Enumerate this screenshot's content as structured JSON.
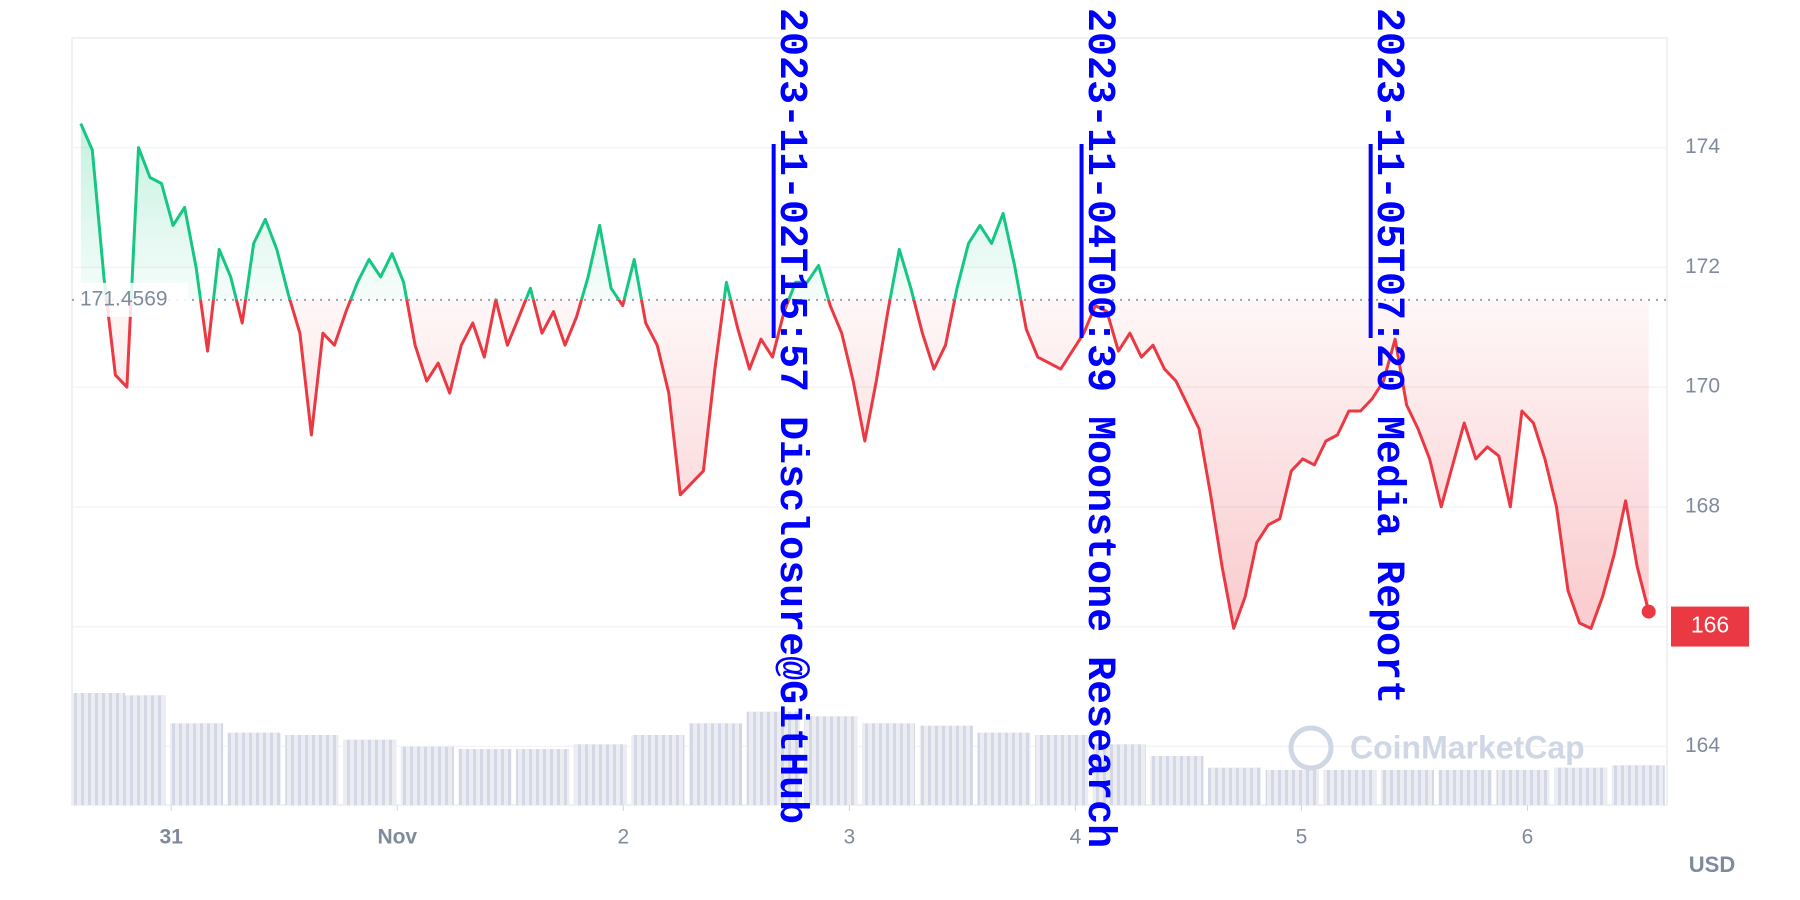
{
  "chart_data": {
    "type": "line",
    "x": [
      -0.4,
      -0.349,
      -0.298,
      -0.247,
      -0.196,
      -0.145,
      -0.094,
      -0.043,
      0.008,
      0.059,
      0.11,
      0.161,
      0.212,
      0.263,
      0.314,
      0.365,
      0.416,
      0.467,
      0.518,
      0.569,
      0.62,
      0.671,
      0.722,
      0.773,
      0.824,
      0.875,
      0.926,
      0.977,
      1.028,
      1.079,
      1.13,
      1.181,
      1.232,
      1.283,
      1.334,
      1.385,
      1.436,
      1.487,
      1.538,
      1.589,
      1.64,
      1.691,
      1.742,
      1.793,
      1.844,
      1.895,
      1.946,
      1.997,
      2.048,
      2.099,
      2.15,
      2.201,
      2.252,
      2.303,
      2.354,
      2.405,
      2.456,
      2.507,
      2.558,
      2.609,
      2.66,
      2.711,
      2.762,
      2.813,
      2.864,
      2.915,
      2.966,
      3.017,
      3.068,
      3.119,
      3.17,
      3.221,
      3.272,
      3.323,
      3.374,
      3.425,
      3.476,
      3.527,
      3.578,
      3.629,
      3.68,
      3.731,
      3.782,
      3.833,
      3.884,
      3.935,
      3.986,
      4.037,
      4.088,
      4.139,
      4.19,
      4.241,
      4.292,
      4.343,
      4.394,
      4.445,
      4.496,
      4.547,
      4.598,
      4.649,
      4.7,
      4.751,
      4.802,
      4.853,
      4.904,
      4.955,
      5.006,
      5.057,
      5.108,
      5.159,
      5.21,
      5.261,
      5.312,
      5.363,
      5.414,
      5.465,
      5.516,
      5.567,
      5.618,
      5.669,
      5.72,
      5.771,
      5.822,
      5.873,
      5.924,
      5.975,
      6.026,
      6.077,
      6.128,
      6.179,
      6.23,
      6.281,
      6.332,
      6.383,
      6.434,
      6.485,
      6.536
    ],
    "values": [
      174.4,
      173.96,
      171.84,
      170.2,
      170.0,
      174.0,
      173.5,
      173.4,
      172.7,
      173.0,
      172.0,
      170.6,
      172.3,
      171.84,
      171.07,
      172.4,
      172.8,
      172.3,
      171.55,
      170.9,
      169.2,
      170.9,
      170.7,
      171.26,
      171.75,
      172.13,
      171.84,
      172.23,
      171.75,
      170.7,
      170.1,
      170.4,
      169.9,
      170.7,
      171.07,
      170.5,
      171.46,
      170.7,
      171.17,
      171.65,
      170.9,
      171.26,
      170.7,
      171.17,
      171.84,
      172.7,
      171.65,
      171.36,
      172.13,
      171.07,
      170.7,
      169.9,
      168.2,
      168.4,
      168.6,
      170.3,
      171.75,
      170.97,
      170.3,
      170.8,
      170.5,
      171.26,
      171.75,
      171.75,
      172.03,
      171.36,
      170.9,
      170.1,
      169.1,
      170.1,
      171.26,
      172.3,
      171.65,
      170.9,
      170.3,
      170.7,
      171.65,
      172.4,
      172.7,
      172.4,
      172.9,
      172.03,
      170.97,
      170.5,
      170.4,
      170.3,
      170.6,
      170.9,
      171.36,
      171.26,
      170.6,
      170.9,
      170.5,
      170.7,
      170.3,
      170.1,
      169.7,
      169.3,
      168.2,
      167.0,
      165.97,
      166.5,
      167.4,
      167.7,
      167.8,
      168.6,
      168.8,
      168.7,
      169.1,
      169.2,
      169.6,
      169.6,
      169.8,
      170.1,
      170.8,
      169.7,
      169.3,
      168.8,
      168.0,
      168.7,
      169.4,
      168.8,
      169.0,
      168.85,
      168.0,
      169.6,
      169.4,
      168.8,
      168.0,
      166.6,
      166.06,
      165.97,
      166.5,
      167.2,
      168.1,
      167.0,
      166.25
    ],
    "up_color": "#16c784",
    "down_color": "#ea3943",
    "baseline": 171.4569,
    "price_tag": 166,
    "xlim": [
      -0.439,
      6.617
    ],
    "xticks": [
      {
        "value": 0,
        "label": "31"
      },
      {
        "value": 1,
        "label": "Nov"
      },
      2,
      3,
      4,
      5,
      6
    ],
    "ylim": [
      163.02,
      175.83
    ],
    "yticks": [
      164,
      166,
      168,
      170,
      172,
      174
    ],
    "grid": true,
    "currency": "USD",
    "watermark": "CoinMarketCap",
    "volume": {
      "color": "#d3d8e4",
      "x": [
        -0.398,
        -0.143,
        0.112,
        0.367,
        0.622,
        0.878,
        1.133,
        1.388,
        1.643,
        1.898,
        2.153,
        2.408,
        2.663,
        2.918,
        3.173,
        3.429,
        3.684,
        3.939,
        4.194,
        4.449,
        4.704,
        4.959,
        5.214,
        5.469,
        5.724,
        5.98,
        6.235,
        6.49
      ],
      "values": [
        96,
        94,
        70,
        62,
        60,
        56,
        50,
        48,
        48,
        52,
        60,
        70,
        80,
        76,
        70,
        68,
        62,
        60,
        52,
        42,
        32,
        30,
        30,
        30,
        30,
        30,
        32,
        34
      ]
    },
    "annotations": [
      {
        "x": 2.665,
        "text": "2023-11-02T15:57 Disclosure@GitHub"
      },
      {
        "x": 4.027,
        "text": "2023-11-04T00:39 Moonstone Research"
      },
      {
        "x": 5.306,
        "text": "2023-11-05T07:20 Media Report"
      }
    ]
  }
}
